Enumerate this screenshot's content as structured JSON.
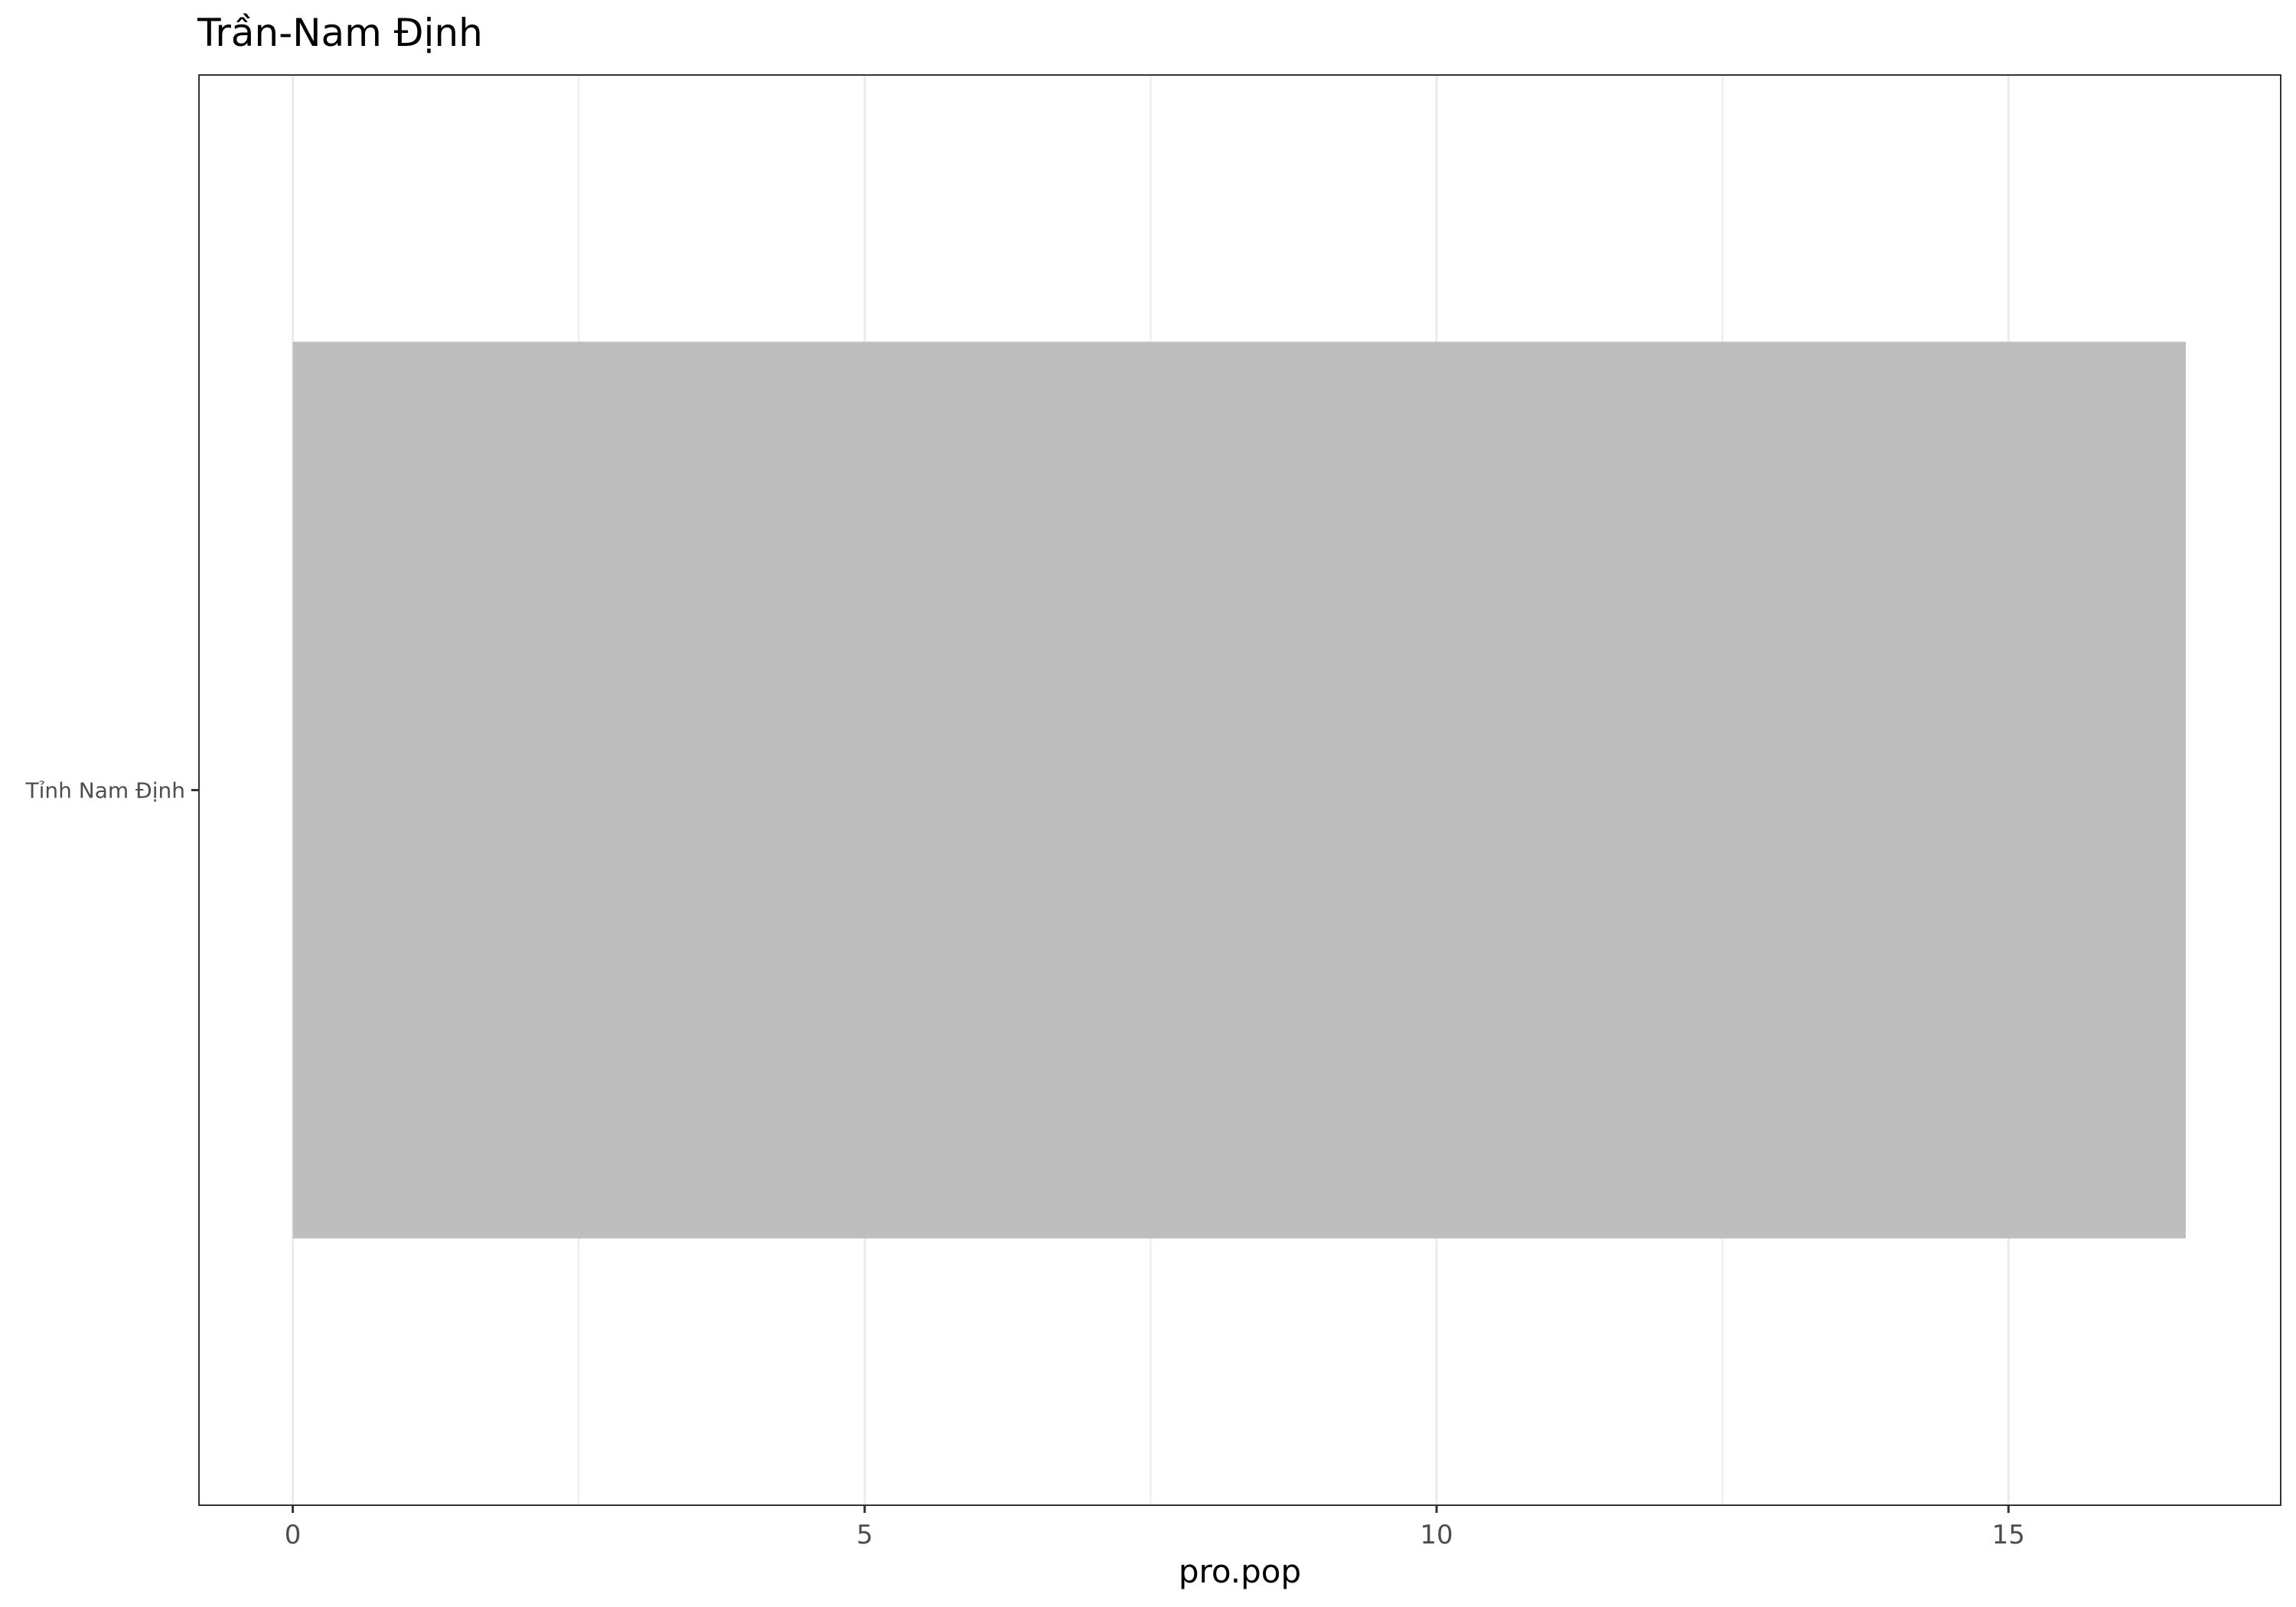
{
  "chart_data": {
    "type": "bar",
    "orientation": "horizontal",
    "title": "Trần-Nam Định",
    "xlabel": "pro.pop",
    "ylabel": "",
    "categories": [
      "Tỉnh Nam Định"
    ],
    "values": [
      16.55
    ],
    "xlim": [
      -0.82,
      17.38
    ],
    "xticks": [
      0,
      5,
      10,
      15
    ],
    "xtick_labels": [
      "0",
      "5",
      "10",
      "15"
    ],
    "minor_gridlines": [
      2.5,
      7.5,
      12.5
    ],
    "grid": true,
    "legend": "none",
    "colors": {
      "bar": "#bebebe",
      "grid": "#ebebeb",
      "panel_border": "#333333",
      "background": "#ffffff"
    }
  }
}
